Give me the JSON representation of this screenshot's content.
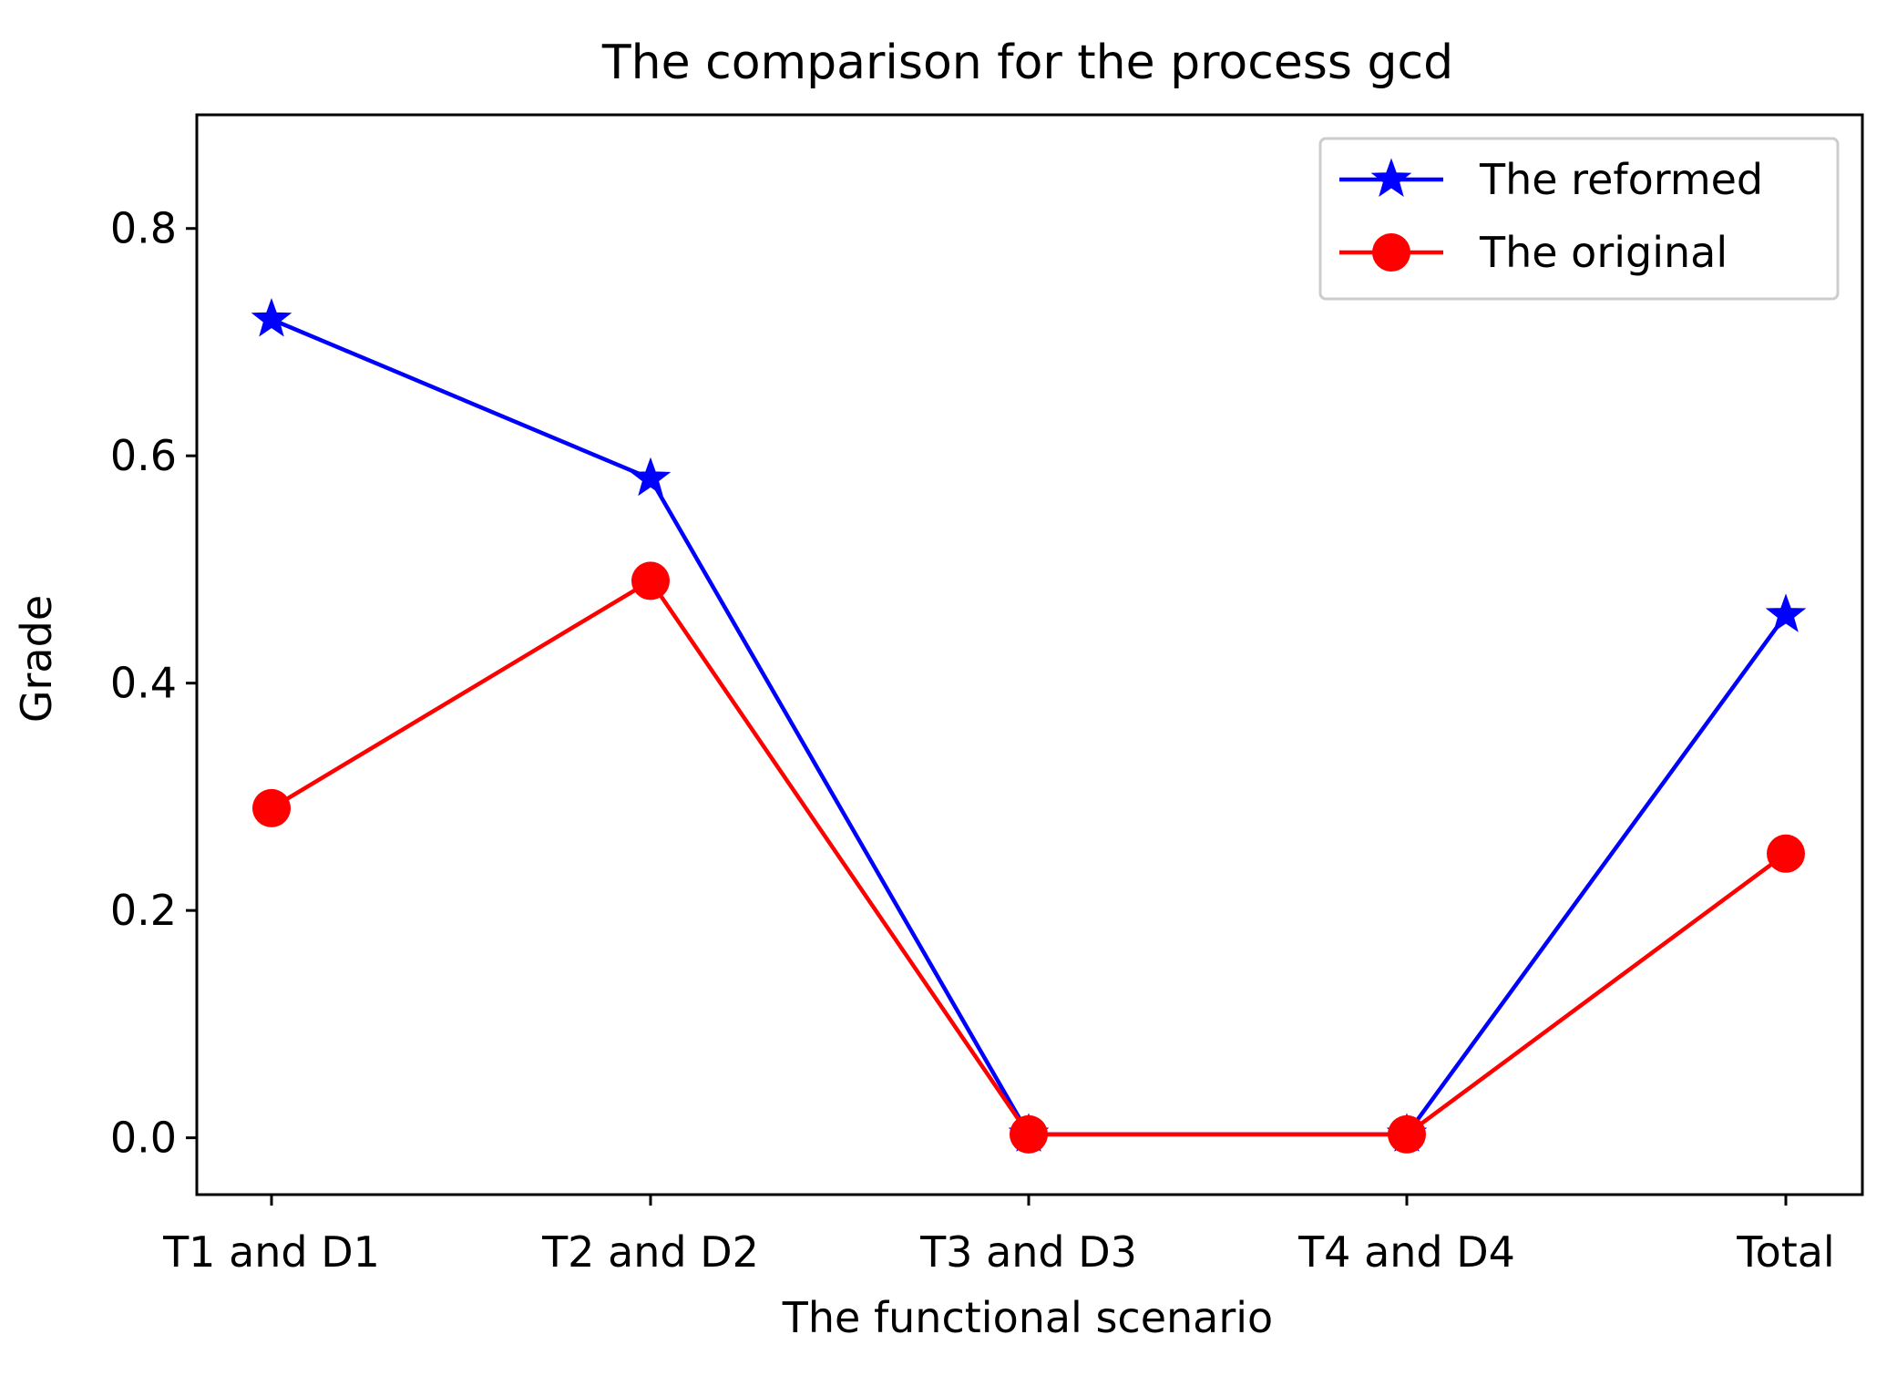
{
  "chart_data": {
    "type": "line",
    "title": "The comparison for the process gcd",
    "xlabel": "The functional scenario",
    "ylabel": "Grade",
    "categories": [
      "T1 and D1",
      "T2 and D2",
      "T3 and D3",
      "T4 and D4",
      "Total"
    ],
    "ylim": [
      -0.05,
      0.9
    ],
    "yticks": [
      0.0,
      0.2,
      0.4,
      0.6,
      0.8
    ],
    "ytick_labels": [
      "0.0",
      "0.2",
      "0.4",
      "0.6",
      "0.8"
    ],
    "grid": false,
    "legend_position": "top-right",
    "series": [
      {
        "name": "The reformed",
        "color": "#0000ff",
        "marker": "star",
        "values": [
          0.72,
          0.58,
          0.003,
          0.003,
          0.46
        ]
      },
      {
        "name": "The original",
        "color": "#ff0000",
        "marker": "circle",
        "values": [
          0.29,
          0.49,
          0.003,
          0.003,
          0.25
        ]
      }
    ]
  }
}
